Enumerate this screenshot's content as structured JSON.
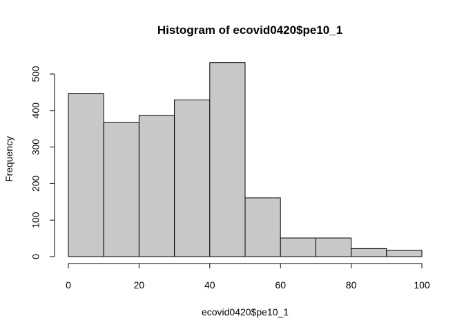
{
  "chart_data": {
    "type": "bar",
    "title": "Histogram of ecovid0420$pe10_1",
    "xlabel": "ecovid0420$pe10_1",
    "ylabel": "Frequency",
    "bins": [
      {
        "start": 0,
        "end": 10,
        "value": 446
      },
      {
        "start": 10,
        "end": 20,
        "value": 367
      },
      {
        "start": 20,
        "end": 30,
        "value": 387
      },
      {
        "start": 30,
        "end": 40,
        "value": 429
      },
      {
        "start": 40,
        "end": 50,
        "value": 531
      },
      {
        "start": 50,
        "end": 60,
        "value": 161
      },
      {
        "start": 60,
        "end": 70,
        "value": 51
      },
      {
        "start": 70,
        "end": 80,
        "value": 51
      },
      {
        "start": 80,
        "end": 90,
        "value": 22
      },
      {
        "start": 90,
        "end": 100,
        "value": 17
      }
    ],
    "xlim": [
      0,
      100
    ],
    "ylim": [
      0,
      500
    ],
    "x_ticks": [
      0,
      20,
      40,
      60,
      80,
      100
    ],
    "y_ticks": [
      0,
      100,
      200,
      300,
      400,
      500
    ],
    "colors": {
      "bar_fill": "#c8c8c8",
      "bar_stroke": "#000000"
    },
    "grid": false
  }
}
